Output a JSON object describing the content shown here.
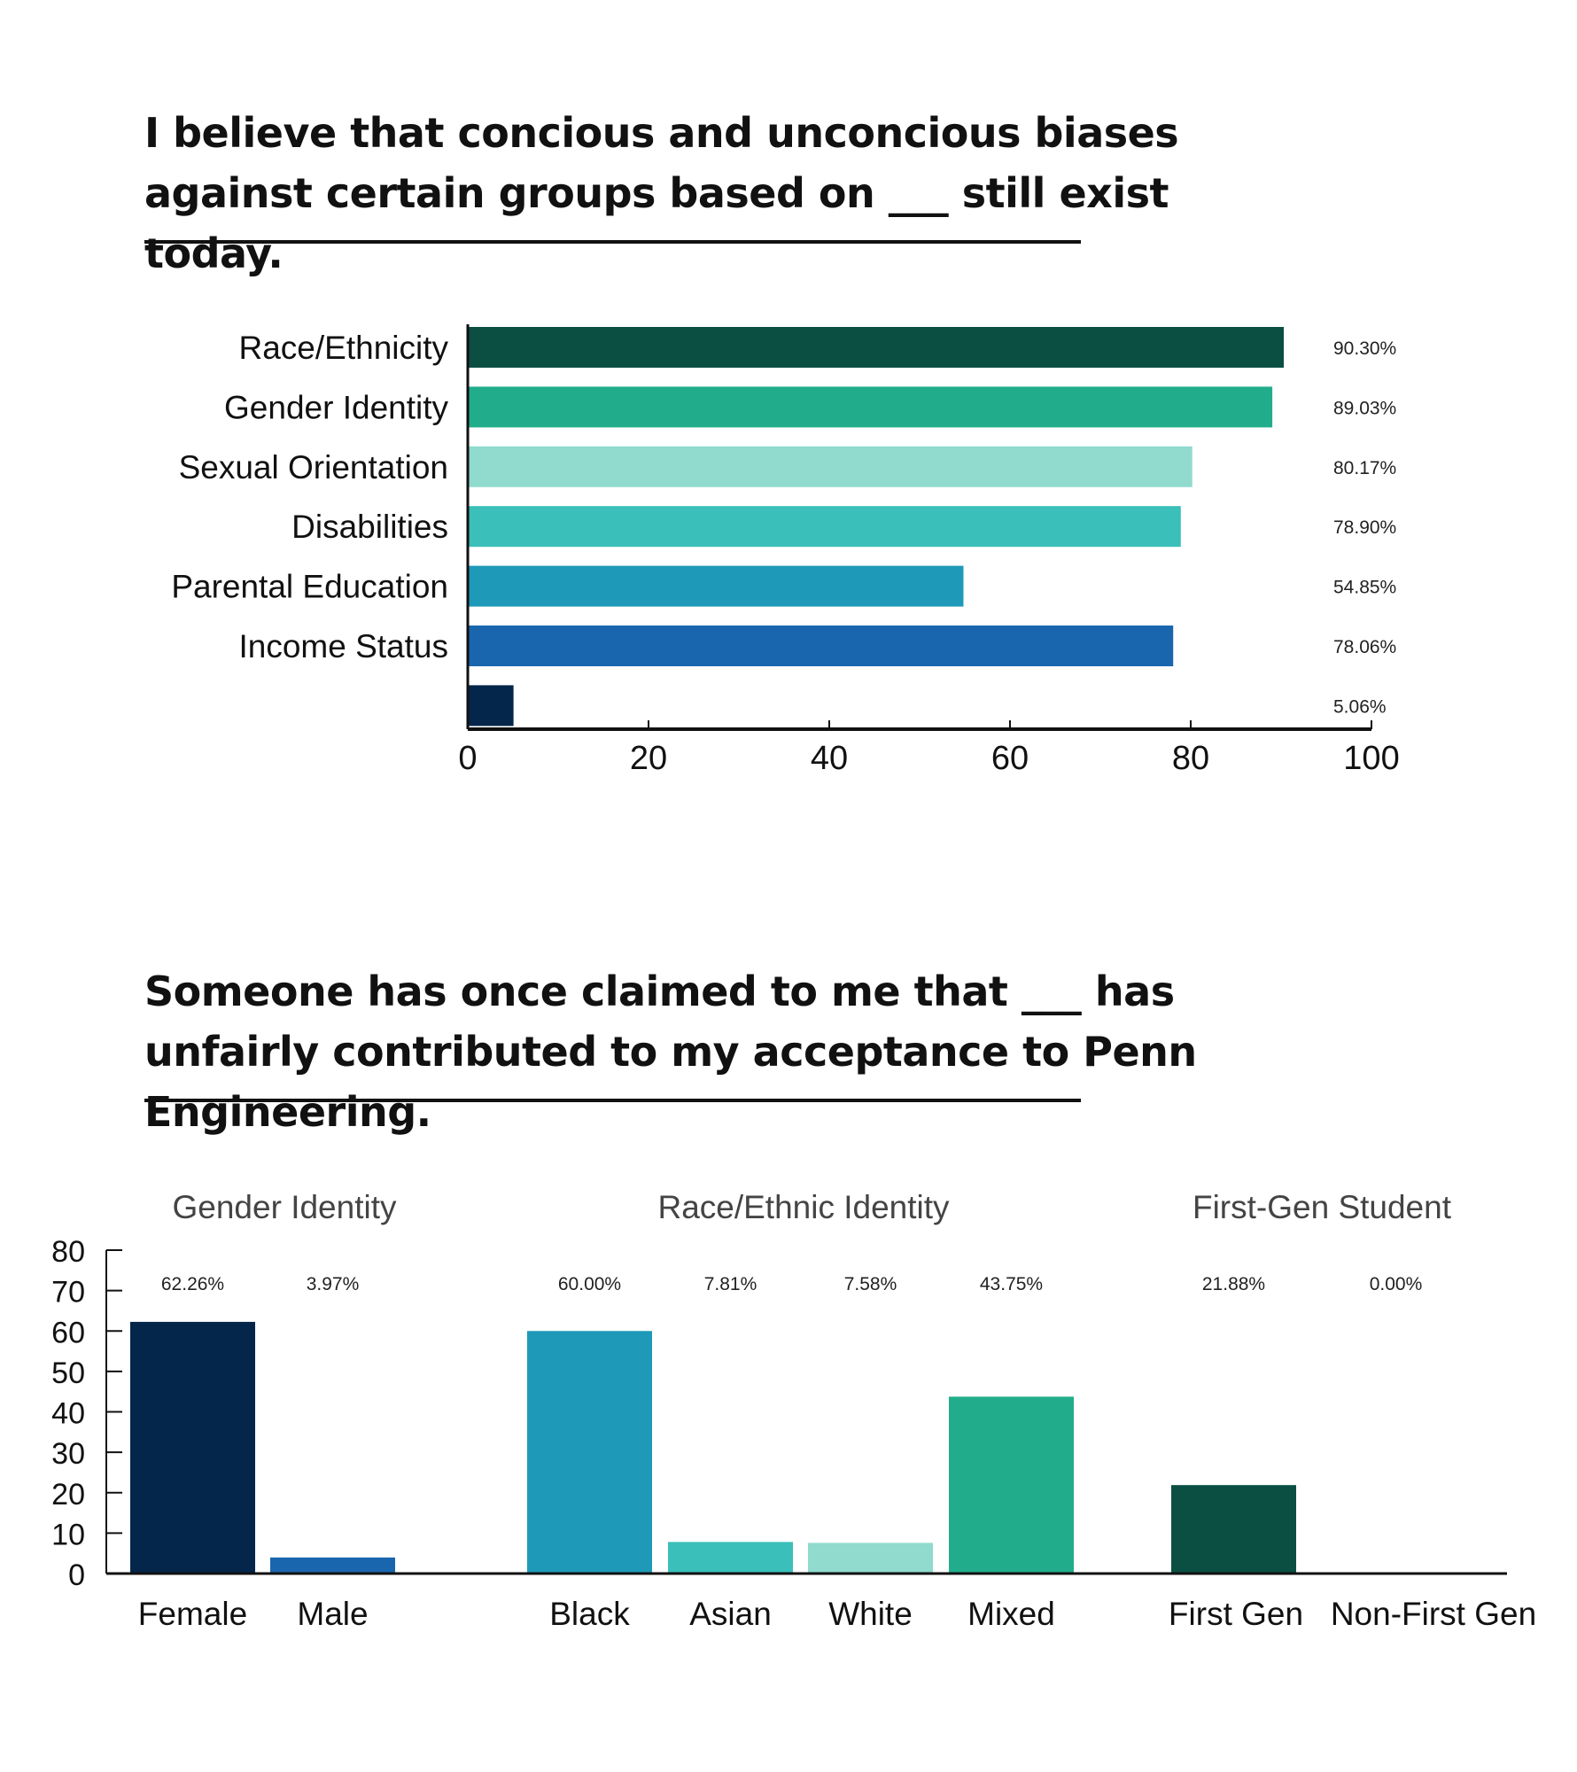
{
  "section1": {
    "title": "I believe that concious and unconcious biases against certain groups based on ___ still exist today."
  },
  "section2": {
    "title": "Someone has once claimed to me that ___ has unfairly contributed to my acceptance to Penn Engineering."
  },
  "chart_data": [
    {
      "type": "bar",
      "orientation": "horizontal",
      "categories": [
        "Race/Ethnicity",
        "Gender Identity",
        "Sexual Orientation",
        "Disabilities",
        "Parental Education",
        "Income Status",
        ""
      ],
      "values": [
        90.3,
        89.03,
        80.17,
        78.9,
        54.85,
        78.06,
        5.06
      ],
      "data_labels": [
        "90.30%",
        "89.03%",
        "80.17%",
        "78.90%",
        "54.85%",
        "78.06%",
        "5.06%"
      ],
      "colors": [
        "#0b4f43",
        "#21ad8c",
        "#90dace",
        "#3abfba",
        "#1e9ab8",
        "#1a66ae",
        "#03264a"
      ],
      "xlim": [
        0,
        100
      ],
      "xticks": [
        0,
        20,
        40,
        60,
        80,
        100
      ],
      "grid": false
    },
    {
      "type": "bar",
      "orientation": "vertical",
      "groups": [
        {
          "name": "Gender Identity",
          "categories": [
            "Female",
            "Male"
          ]
        },
        {
          "name": "Race/Ethnic Identity",
          "categories": [
            "Black",
            "Asian",
            "White",
            "Mixed"
          ]
        },
        {
          "name": "First-Gen Student",
          "categories": [
            "First Gen",
            "Non-First Gen"
          ]
        }
      ],
      "categories": [
        "Female",
        "Male",
        "Black",
        "Asian",
        "White",
        "Mixed",
        "First Gen",
        "Non-First Gen"
      ],
      "values": [
        62.26,
        3.97,
        60.0,
        7.81,
        7.58,
        43.75,
        21.88,
        0.0
      ],
      "data_labels": [
        "62.26%",
        "3.97%",
        "60.00%",
        "7.81%",
        "7.58%",
        "43.75%",
        "21.88%",
        "0.00%"
      ],
      "colors": [
        "#03264a",
        "#1a66ae",
        "#1e9ab8",
        "#3abfba",
        "#90dace",
        "#21ad8c",
        "#0b4f43",
        "#0b4f43"
      ],
      "ylim": [
        0,
        80
      ],
      "yticks": [
        0,
        10,
        20,
        30,
        40,
        50,
        60,
        70,
        80
      ],
      "grid": false
    }
  ]
}
